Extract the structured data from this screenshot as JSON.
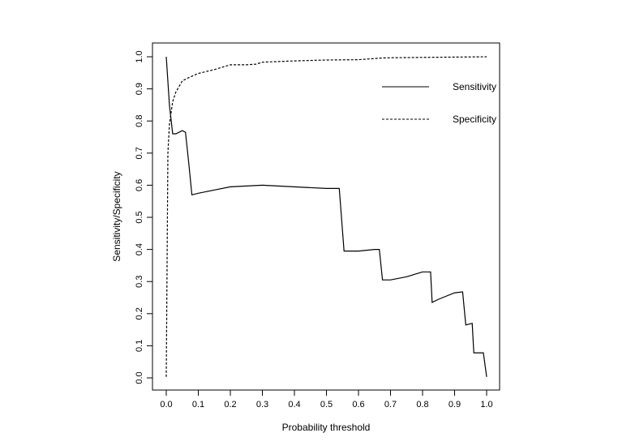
{
  "chart_data": {
    "type": "line",
    "title": "",
    "xlabel": "Probability threshold",
    "ylabel": "Sensitivity/Specificity",
    "xlim": [
      0,
      1
    ],
    "ylim": [
      0,
      1
    ],
    "xticks": [
      "0.0",
      "0.1",
      "0.2",
      "0.3",
      "0.4",
      "0.5",
      "0.6",
      "0.7",
      "0.8",
      "0.9",
      "1.0"
    ],
    "yticks": [
      "0.0",
      "0.1",
      "0.2",
      "0.3",
      "0.4",
      "0.5",
      "0.6",
      "0.7",
      "0.8",
      "0.9",
      "1.0"
    ],
    "grid": false,
    "legend_position": "top-right",
    "series": [
      {
        "name": "Sensitivity",
        "line_style": "solid",
        "color": "#000000",
        "x": [
          0.0,
          0.01,
          0.02,
          0.03,
          0.04,
          0.05,
          0.06,
          0.07,
          0.08,
          0.1,
          0.15,
          0.2,
          0.3,
          0.5,
          0.54,
          0.555,
          0.6,
          0.65,
          0.665,
          0.675,
          0.7,
          0.75,
          0.8,
          0.825,
          0.83,
          0.85,
          0.9,
          0.925,
          0.935,
          0.955,
          0.96,
          0.99,
          1.0
        ],
        "y": [
          1.0,
          0.85,
          0.76,
          0.76,
          0.765,
          0.77,
          0.765,
          0.67,
          0.57,
          0.575,
          0.585,
          0.595,
          0.6,
          0.59,
          0.59,
          0.395,
          0.395,
          0.4,
          0.4,
          0.305,
          0.305,
          0.315,
          0.33,
          0.33,
          0.235,
          0.245,
          0.265,
          0.268,
          0.165,
          0.17,
          0.078,
          0.078,
          0.003
        ]
      },
      {
        "name": "Specificity",
        "line_style": "dashed",
        "color": "#000000",
        "x": [
          0.0,
          0.005,
          0.01,
          0.02,
          0.03,
          0.05,
          0.07,
          0.1,
          0.15,
          0.2,
          0.25,
          0.28,
          0.3,
          0.35,
          0.4,
          0.5,
          0.6,
          0.67,
          0.7,
          0.8,
          0.9,
          1.0
        ],
        "y": [
          0.003,
          0.7,
          0.79,
          0.86,
          0.89,
          0.925,
          0.935,
          0.948,
          0.96,
          0.975,
          0.975,
          0.977,
          0.983,
          0.985,
          0.987,
          0.99,
          0.991,
          0.996,
          0.997,
          0.998,
          0.999,
          1.0
        ]
      }
    ]
  }
}
